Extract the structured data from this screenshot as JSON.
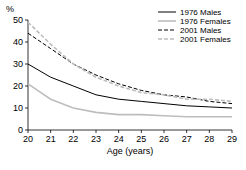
{
  "chart_data": {
    "type": "line",
    "y_label": "%",
    "x_label": "Age (years)",
    "x": [
      20,
      21,
      22,
      23,
      24,
      25,
      26,
      27,
      28,
      29
    ],
    "series": [
      {
        "name": "1976 Males",
        "color": "#000000",
        "line_style": "solid",
        "values": [
          30,
          24,
          20,
          16,
          14,
          13,
          12,
          11,
          10.5,
          10
        ]
      },
      {
        "name": "1976 Females",
        "color": "#bdbdbd",
        "line_style": "solid",
        "values": [
          21,
          14,
          10,
          8,
          7,
          7,
          6.5,
          6,
          6,
          6
        ]
      },
      {
        "name": "2001 Males",
        "color": "#000000",
        "line_style": "dashed",
        "values": [
          44,
          37,
          30,
          25,
          21,
          18,
          16,
          15,
          13,
          12
        ]
      },
      {
        "name": "2001 Females",
        "color": "#bdbdbd",
        "line_style": "dashed",
        "values": [
          49,
          39,
          30,
          24,
          20,
          17,
          16,
          14,
          14,
          13
        ]
      }
    ],
    "xlim": [
      20,
      29
    ],
    "xticks": [
      20,
      21,
      22,
      23,
      24,
      25,
      26,
      27,
      28,
      29
    ],
    "ylim": [
      0,
      50
    ],
    "yticks": [
      0,
      10,
      20,
      30,
      40,
      50
    ],
    "grid": false,
    "legend": "top-right"
  }
}
